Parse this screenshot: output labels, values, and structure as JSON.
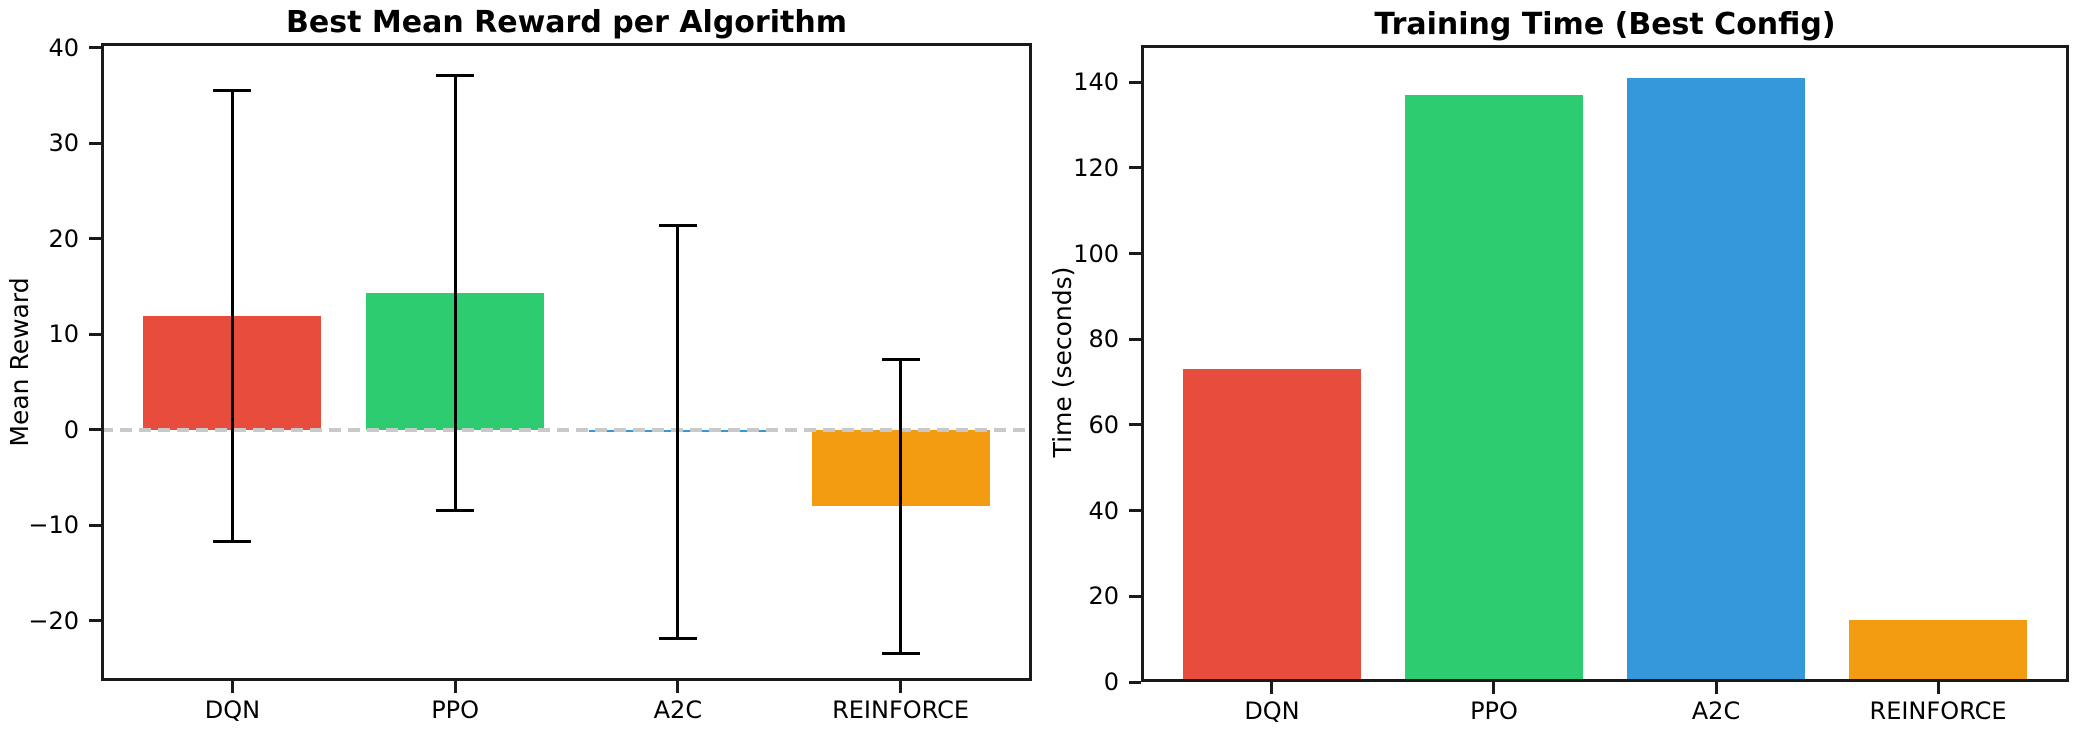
{
  "figure": {
    "background": "#ffffff",
    "spine_color": "#1a1a1a",
    "text_color": "#000000"
  },
  "chart_data": [
    {
      "type": "bar",
      "title": "Best Mean Reward per Algorithm",
      "xlabel": "",
      "ylabel": "Mean Reward",
      "categories": [
        "DQN",
        "PPO",
        "A2C",
        "REINFORCE"
      ],
      "values": [
        11.9,
        14.3,
        -0.2,
        -8.0
      ],
      "errors": [
        23.6,
        22.8,
        21.6,
        15.4
      ],
      "bar_colors": [
        "#e74c3c",
        "#2ecc71",
        "#3498db",
        "#f39c12"
      ],
      "error_bar_color": "#000000",
      "yticks": [
        40,
        30,
        20,
        10,
        0,
        -10,
        -20
      ],
      "ylim": [
        -26.3,
        40.5
      ],
      "bar_width": 0.8,
      "grid": false,
      "legend": null,
      "zero_line": {
        "style": "dashed",
        "color": "#c9c9c9"
      }
    },
    {
      "type": "bar",
      "title": "Training Time (Best Config)",
      "xlabel": "",
      "ylabel": "Time (seconds)",
      "categories": [
        "DQN",
        "PPO",
        "A2C",
        "REINFORCE"
      ],
      "values": [
        73,
        137,
        141,
        14.5
      ],
      "bar_colors": [
        "#e74c3c",
        "#2ecc71",
        "#3498db",
        "#f39c12"
      ],
      "yticks": [
        0,
        20,
        40,
        60,
        80,
        100,
        120,
        140
      ],
      "ylim": [
        0,
        148.7
      ],
      "bar_width": 0.8,
      "grid": false,
      "legend": null
    }
  ]
}
